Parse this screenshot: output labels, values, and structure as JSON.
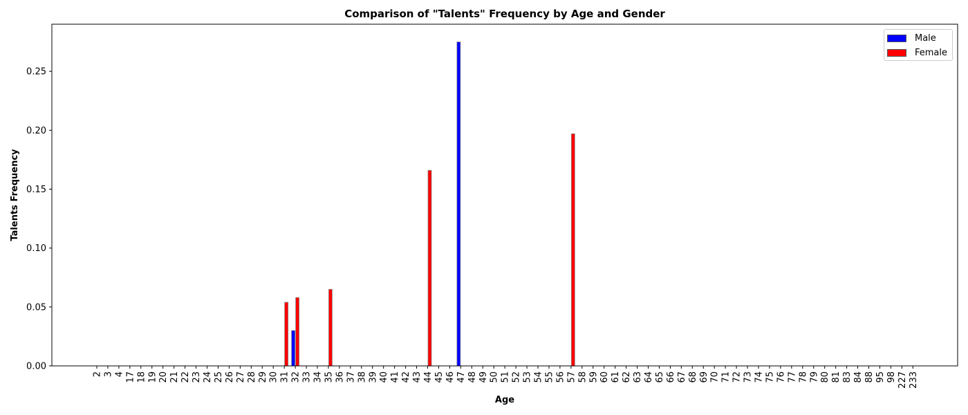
{
  "chart_data": {
    "type": "bar",
    "title": "Comparison of \"Talents\" Frequency by Age and Gender",
    "xlabel": "Age",
    "ylabel": "Talents Frequency",
    "ylim": [
      0,
      0.29
    ],
    "yticks": [
      0.0,
      0.05,
      0.1,
      0.15,
      0.2,
      0.25
    ],
    "ytick_labels": [
      "0.00",
      "0.05",
      "0.10",
      "0.15",
      "0.20",
      "0.25"
    ],
    "categories": [
      "2",
      "3",
      "4",
      "17",
      "18",
      "19",
      "20",
      "21",
      "22",
      "23",
      "24",
      "25",
      "26",
      "27",
      "28",
      "29",
      "30",
      "31",
      "32",
      "33",
      "34",
      "35",
      "36",
      "37",
      "38",
      "39",
      "40",
      "41",
      "42",
      "43",
      "44",
      "45",
      "46",
      "47",
      "48",
      "49",
      "50",
      "51",
      "52",
      "53",
      "54",
      "55",
      "56",
      "57",
      "58",
      "59",
      "60",
      "61",
      "62",
      "63",
      "64",
      "65",
      "66",
      "67",
      "68",
      "69",
      "70",
      "71",
      "72",
      "73",
      "74",
      "75",
      "76",
      "77",
      "78",
      "79",
      "80",
      "81",
      "83",
      "84",
      "88",
      "95",
      "98",
      "227",
      "233"
    ],
    "series": [
      {
        "name": "Male",
        "color": "#0000ff",
        "values": [
          0,
          0,
          0,
          0,
          0,
          0,
          0,
          0,
          0,
          0,
          0,
          0,
          0,
          0,
          0,
          0,
          0,
          0,
          0.03,
          0,
          0,
          0,
          0,
          0,
          0,
          0,
          0,
          0,
          0,
          0,
          0,
          0,
          0,
          0.275,
          0,
          0,
          0,
          0,
          0,
          0,
          0,
          0,
          0,
          0,
          0,
          0,
          0,
          0,
          0,
          0,
          0,
          0,
          0,
          0,
          0,
          0,
          0,
          0,
          0,
          0,
          0,
          0,
          0,
          0,
          0,
          0,
          0,
          0,
          0,
          0,
          0,
          0,
          0,
          0,
          0
        ]
      },
      {
        "name": "Female",
        "color": "#ff0000",
        "values": [
          0,
          0,
          0,
          0,
          0,
          0,
          0,
          0,
          0,
          0,
          0,
          0,
          0,
          0,
          0,
          0,
          0,
          0.054,
          0.058,
          0,
          0,
          0.065,
          0,
          0,
          0,
          0,
          0,
          0,
          0,
          0,
          0.166,
          0,
          0,
          0,
          0,
          0,
          0,
          0,
          0,
          0,
          0,
          0,
          0,
          0.197,
          0,
          0,
          0,
          0,
          0,
          0,
          0,
          0,
          0,
          0,
          0,
          0,
          0,
          0,
          0,
          0,
          0,
          0,
          0,
          0,
          0,
          0,
          0,
          0,
          0,
          0,
          0,
          0,
          0,
          0,
          0
        ]
      }
    ],
    "legend_position": "top-right",
    "grid": false
  }
}
